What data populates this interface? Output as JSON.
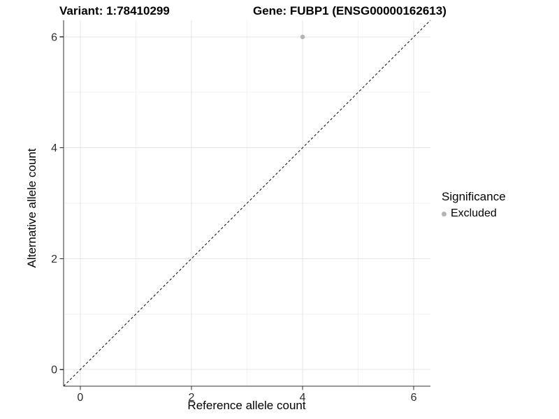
{
  "titles": {
    "variant": "Variant: 1:78410299",
    "gene": "Gene: FUBP1 (ENSG00000162613)"
  },
  "axes": {
    "x": {
      "label": "Reference allele count",
      "major_ticks": [
        0,
        2,
        4,
        6
      ],
      "tick_labels": [
        "0",
        "2",
        "4",
        "6"
      ],
      "minor_ticks": [
        1,
        3,
        5
      ]
    },
    "y": {
      "label": "Alternative allele count",
      "major_ticks": [
        0,
        2,
        4,
        6
      ],
      "tick_labels": [
        "0",
        "2",
        "4",
        "6"
      ],
      "minor_ticks": [
        1,
        3,
        5
      ]
    }
  },
  "legend": {
    "title": "Significance",
    "items": [
      {
        "label": "Excluded",
        "color": "#b4b4b4"
      }
    ]
  },
  "colors": {
    "background": "#ffffff",
    "grid_major": "#e4e4e4",
    "grid_minor": "#f1f1f1",
    "axis_line": "#333333",
    "tick_text": "#2e2e2e",
    "identity_line": "#1a1a1a",
    "point": "#b4b4b4"
  },
  "chart_data": {
    "type": "scatter",
    "title": "Variant: 1:78410299   Gene: FUBP1 (ENSG00000162613)",
    "xlabel": "Reference allele count",
    "ylabel": "Alternative allele count",
    "xlim": [
      -0.3,
      6.3
    ],
    "ylim": [
      -0.3,
      6.3
    ],
    "x_ticks": [
      0,
      2,
      4,
      6
    ],
    "y_ticks": [
      0,
      2,
      4,
      6
    ],
    "grid": "on",
    "legend_position": "right",
    "series": [
      {
        "name": "Excluded",
        "color": "#b4b4b4",
        "points": [
          {
            "x": 4,
            "y": 6
          }
        ]
      }
    ],
    "reference_line": {
      "type": "identity",
      "slope": 1,
      "intercept": 0,
      "style": "dashed",
      "color": "#1a1a1a"
    }
  }
}
